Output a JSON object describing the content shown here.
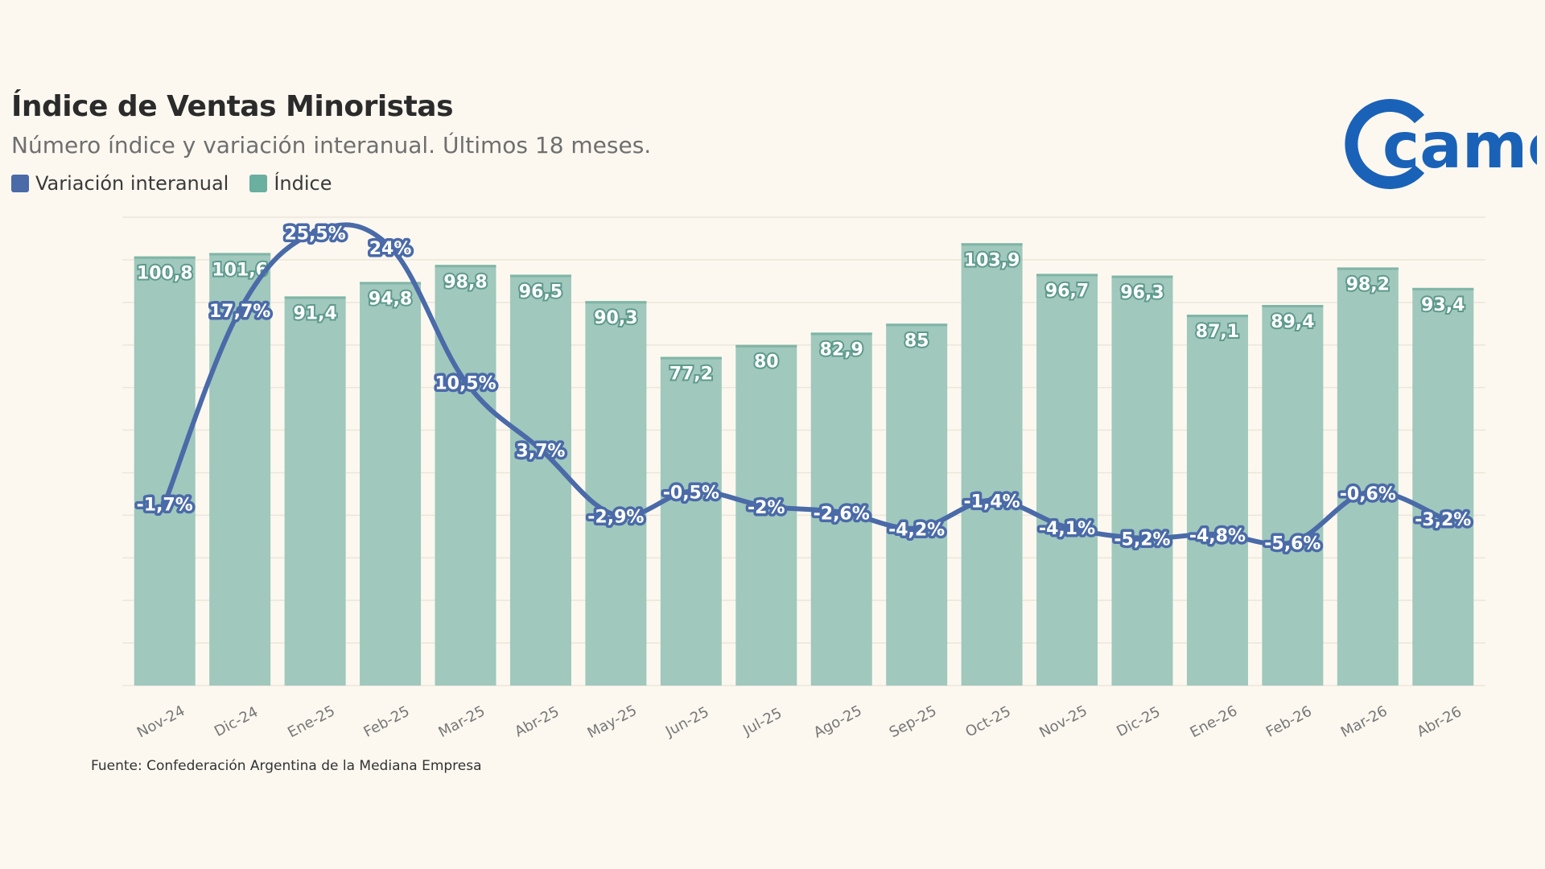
{
  "header": {
    "title": "Índice de Ventas Minoristas",
    "subtitle": "Número índice y variación interanual. Últimos 18 meses."
  },
  "legend": {
    "items": [
      {
        "label": "Variación interanual",
        "color": "#4a6aa8"
      },
      {
        "label": "Índice",
        "color": "#6aaf9f"
      }
    ]
  },
  "logo": {
    "icon": "came-logo",
    "text": "came",
    "color": "#1a62b8"
  },
  "source": "Fuente: Confederación Argentina de la Mediana Empresa",
  "chart_data": {
    "type": "bar",
    "categories": [
      "Nov-24",
      "Dic-24",
      "Ene-25",
      "Feb-25",
      "Mar-25",
      "Abr-25",
      "May-25",
      "Jun-25",
      "Jul-25",
      "Ago-25",
      "Sep-25",
      "Oct-25",
      "Nov-25",
      "Dic-25",
      "Ene-26",
      "Feb-26",
      "Mar-26",
      "Abr-26"
    ],
    "series": [
      {
        "name": "Índice",
        "kind": "bar",
        "color": "#a0c8bd",
        "values": [
          100.8,
          101.6,
          91.4,
          94.8,
          98.8,
          96.5,
          90.3,
          77.2,
          80,
          82.9,
          85,
          103.9,
          96.7,
          96.3,
          87.1,
          89.4,
          98.2,
          93.4
        ],
        "labels": [
          "100,8",
          "101,6",
          "91,4",
          "94,8",
          "98,8",
          "96,5",
          "90,3",
          "77,2",
          "80",
          "82,9",
          "85",
          "103,9",
          "96,7",
          "96,3",
          "87,1",
          "89,4",
          "98,2",
          "93,4"
        ]
      },
      {
        "name": "Variación interanual",
        "kind": "line",
        "color": "#4a6aa8",
        "values": [
          -1.7,
          17.7,
          25.5,
          24,
          10.5,
          3.7,
          -2.9,
          -0.5,
          -2,
          -2.6,
          -4.2,
          -1.4,
          -4.1,
          -5.2,
          -4.8,
          -5.6,
          -0.6,
          -3.2
        ],
        "labels": [
          "-1,7%",
          "17,7%",
          "25,5%",
          "24%",
          "10,5%",
          "3,7%",
          "-2,9%",
          "-0,5%",
          "-2%",
          "-2,6%",
          "-4,2%",
          "-1,4%",
          "-4,1%",
          "-5,2%",
          "-4,8%",
          "-5,6%",
          "-0,6%",
          "-3,2%"
        ]
      }
    ],
    "bar_ylim": [
      0,
      110
    ],
    "line_ylim": [
      -20,
      27
    ],
    "grid": true,
    "legend": "top-left",
    "xlabel": "",
    "ylabel": ""
  }
}
